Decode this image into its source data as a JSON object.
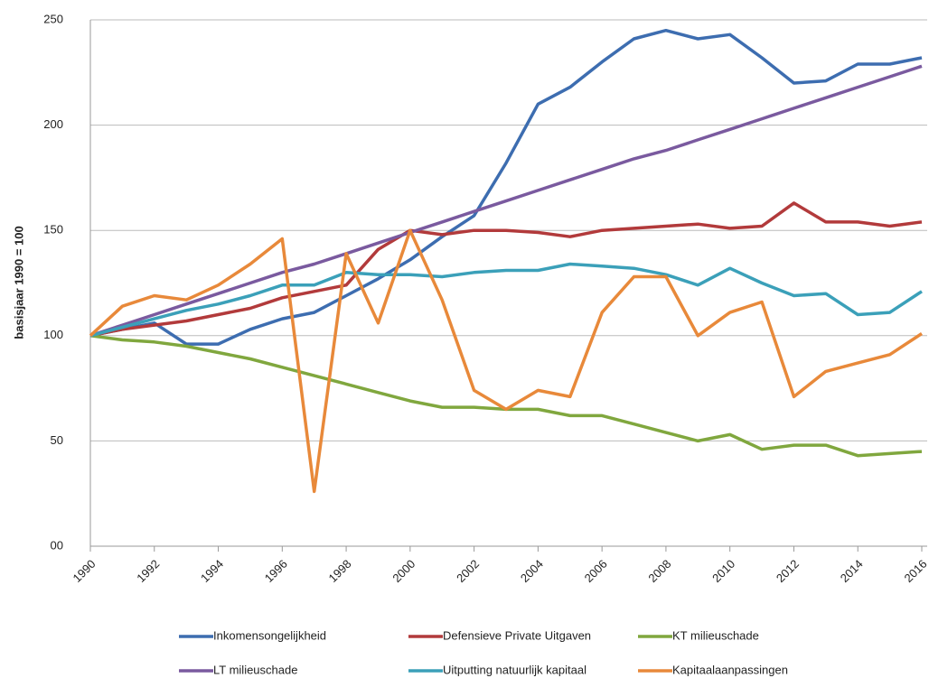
{
  "chart_data": {
    "type": "line",
    "y_label": "basisjaar 1990 = 100",
    "x": [
      1990,
      1991,
      1992,
      1993,
      1994,
      1995,
      1996,
      1997,
      1998,
      1999,
      2000,
      2001,
      2002,
      2003,
      2004,
      2005,
      2006,
      2007,
      2008,
      2009,
      2010,
      2011,
      2012,
      2013,
      2014,
      2015,
      2016
    ],
    "xlim": [
      1990,
      2016
    ],
    "xticks": [
      1990,
      1992,
      1994,
      1996,
      1998,
      2000,
      2002,
      2004,
      2006,
      2008,
      2010,
      2012,
      2014,
      2016
    ],
    "ylim": [
      0,
      250
    ],
    "yticks": [
      {
        "value": 0,
        "label": "00"
      },
      50,
      100,
      150,
      200,
      250
    ],
    "grid": true,
    "legend": "bottom",
    "series": [
      {
        "name": "Inkomensongelijkheid",
        "color": "#3d6db0",
        "values": [
          100,
          103,
          106,
          96,
          96,
          103,
          108,
          111,
          119,
          127,
          136,
          147,
          157,
          182,
          210,
          218,
          230,
          241,
          245,
          241,
          243,
          232,
          220,
          221,
          229,
          229,
          232
        ]
      },
      {
        "name": "Defensieve Private Uitgaven",
        "color": "#b23a3b",
        "values": [
          100,
          103,
          105,
          107,
          110,
          113,
          118,
          121,
          124,
          141,
          150,
          148,
          150,
          150,
          149,
          147,
          150,
          151,
          152,
          153,
          151,
          152,
          163,
          154,
          154,
          152,
          154
        ]
      },
      {
        "name": "KT milieuschade",
        "color": "#80a73e",
        "values": [
          100,
          98,
          97,
          95,
          92,
          89,
          85,
          81,
          77,
          73,
          69,
          66,
          66,
          65,
          65,
          62,
          62,
          58,
          54,
          50,
          53,
          46,
          48,
          48,
          43,
          44,
          45
        ]
      },
      {
        "name": "LT milieuschade",
        "color": "#7a5a9f",
        "values": [
          100,
          105,
          110,
          115,
          120,
          125,
          130,
          134,
          139,
          144,
          149,
          154,
          159,
          164,
          169,
          174,
          179,
          184,
          188,
          193,
          198,
          203,
          208,
          213,
          218,
          223,
          228
        ]
      },
      {
        "name": "Uitputting natuurlijk kapitaal",
        "color": "#3ba0b9",
        "values": [
          100,
          104,
          108,
          112,
          115,
          119,
          124,
          124,
          130,
          129,
          129,
          128,
          130,
          131,
          131,
          134,
          133,
          132,
          129,
          124,
          132,
          125,
          119,
          120,
          110,
          111,
          121
        ]
      },
      {
        "name": "Kapitaalaanpassingen",
        "color": "#e8893a",
        "values": [
          100,
          114,
          119,
          117,
          124,
          134,
          146,
          26,
          139,
          106,
          150,
          117,
          74,
          65,
          74,
          71,
          111,
          128,
          128,
          100,
          111,
          116,
          71,
          83,
          87,
          91,
          101
        ]
      }
    ]
  }
}
